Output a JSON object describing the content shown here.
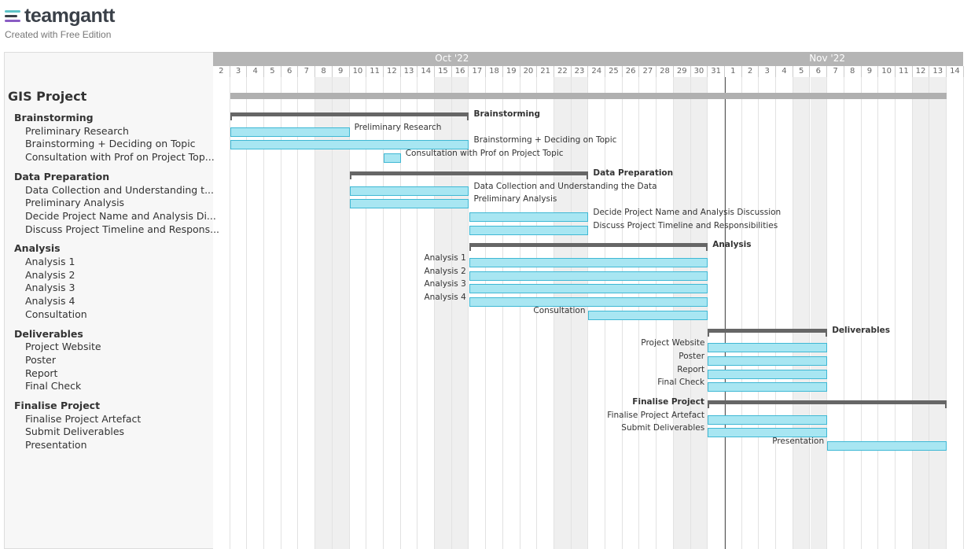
{
  "app": {
    "logo_text": "teamgantt",
    "tagline": "Created with Free Edition",
    "logo_colors": [
      "#5cc2c6",
      "#8a5cc4",
      "#3a4048"
    ]
  },
  "timeline": {
    "months": [
      {
        "label": "Oct '22",
        "center_day_index": 14
      },
      {
        "label": "Nov '22",
        "center_day_index": 36
      }
    ],
    "days": [
      "2",
      "3",
      "4",
      "5",
      "6",
      "7",
      "8",
      "9",
      "10",
      "11",
      "12",
      "13",
      "14",
      "15",
      "16",
      "17",
      "18",
      "19",
      "20",
      "21",
      "22",
      "23",
      "24",
      "25",
      "26",
      "27",
      "28",
      "29",
      "30",
      "31",
      "1",
      "2",
      "3",
      "4",
      "5",
      "6",
      "7",
      "8",
      "9",
      "10",
      "11",
      "12",
      "13",
      "14"
    ],
    "weekend_indices": [
      6,
      7,
      13,
      14,
      20,
      21,
      27,
      28,
      34,
      35,
      41,
      42
    ],
    "today_index": 29.5
  },
  "project": {
    "title": "GIS Project",
    "bar": {
      "start": 1,
      "end": 43
    }
  },
  "rows": [
    {
      "kind": "group",
      "sidebar": "Brainstorming",
      "label": "Brainstorming",
      "start": 1,
      "end": 15,
      "label_side": "right"
    },
    {
      "kind": "task",
      "sidebar": "Preliminary Research",
      "label": "Preliminary Research",
      "start": 1,
      "end": 8,
      "label_side": "right"
    },
    {
      "kind": "task",
      "sidebar": "Brainstorming + Deciding on Topic",
      "label": "Brainstorming + Deciding on Topic",
      "start": 1,
      "end": 15,
      "label_side": "right"
    },
    {
      "kind": "task",
      "sidebar": "Consultation with Prof on Project Top...",
      "label": "Consultation with Prof on Project Topic",
      "start": 10,
      "end": 11,
      "label_side": "right"
    },
    {
      "kind": "group",
      "sidebar": "Data Preparation",
      "label": "Data Preparation",
      "start": 8,
      "end": 22,
      "label_side": "right"
    },
    {
      "kind": "task",
      "sidebar": "Data Collection and Understanding t...",
      "label": "Data Collection and Understanding the Data",
      "start": 8,
      "end": 15,
      "label_side": "right"
    },
    {
      "kind": "task",
      "sidebar": "Preliminary Analysis",
      "label": "Preliminary Analysis",
      "start": 8,
      "end": 15,
      "label_side": "right"
    },
    {
      "kind": "task",
      "sidebar": "Decide Project Name and Analysis Di...",
      "label": "Decide Project Name and Analysis Discussion",
      "start": 15,
      "end": 22,
      "label_side": "right"
    },
    {
      "kind": "task",
      "sidebar": "Discuss Project Timeline and Respons...",
      "label": "Discuss Project Timeline and Responsibilities",
      "start": 15,
      "end": 22,
      "label_side": "right"
    },
    {
      "kind": "group",
      "sidebar": "Analysis",
      "label": "Analysis",
      "start": 15,
      "end": 29,
      "label_side": "right"
    },
    {
      "kind": "task",
      "sidebar": "Analysis 1",
      "label": "Analysis 1",
      "start": 15,
      "end": 29,
      "label_side": "left"
    },
    {
      "kind": "task",
      "sidebar": "Analysis 2",
      "label": "Analysis 2",
      "start": 15,
      "end": 29,
      "label_side": "left"
    },
    {
      "kind": "task",
      "sidebar": "Analysis 3",
      "label": "Analysis 3",
      "start": 15,
      "end": 29,
      "label_side": "left"
    },
    {
      "kind": "task",
      "sidebar": "Analysis 4",
      "label": "Analysis 4",
      "start": 15,
      "end": 29,
      "label_side": "left"
    },
    {
      "kind": "task",
      "sidebar": "Consultation",
      "label": "Consultation",
      "start": 22,
      "end": 29,
      "label_side": "left"
    },
    {
      "kind": "group",
      "sidebar": "Deliverables",
      "label": "Deliverables",
      "start": 29,
      "end": 36,
      "label_side": "right"
    },
    {
      "kind": "task",
      "sidebar": "Project Website",
      "label": "Project Website",
      "start": 29,
      "end": 36,
      "label_side": "left"
    },
    {
      "kind": "task",
      "sidebar": "Poster",
      "label": "Poster",
      "start": 29,
      "end": 36,
      "label_side": "left"
    },
    {
      "kind": "task",
      "sidebar": "Report",
      "label": "Report",
      "start": 29,
      "end": 36,
      "label_side": "left"
    },
    {
      "kind": "task",
      "sidebar": "Final Check",
      "label": "Final Check",
      "start": 29,
      "end": 36,
      "label_side": "left"
    },
    {
      "kind": "group",
      "sidebar": "Finalise Project",
      "label": "Finalise Project",
      "start": 29,
      "end": 43,
      "label_side": "left"
    },
    {
      "kind": "task",
      "sidebar": "Finalise Project Artefact",
      "label": "Finalise Project Artefact",
      "start": 29,
      "end": 36,
      "label_side": "left"
    },
    {
      "kind": "task",
      "sidebar": "Submit Deliverables",
      "label": "Submit Deliverables",
      "start": 29,
      "end": 36,
      "label_side": "left"
    },
    {
      "kind": "task",
      "sidebar": "Presentation",
      "label": "Presentation",
      "start": 36,
      "end": 43,
      "label_side": "left"
    }
  ]
}
